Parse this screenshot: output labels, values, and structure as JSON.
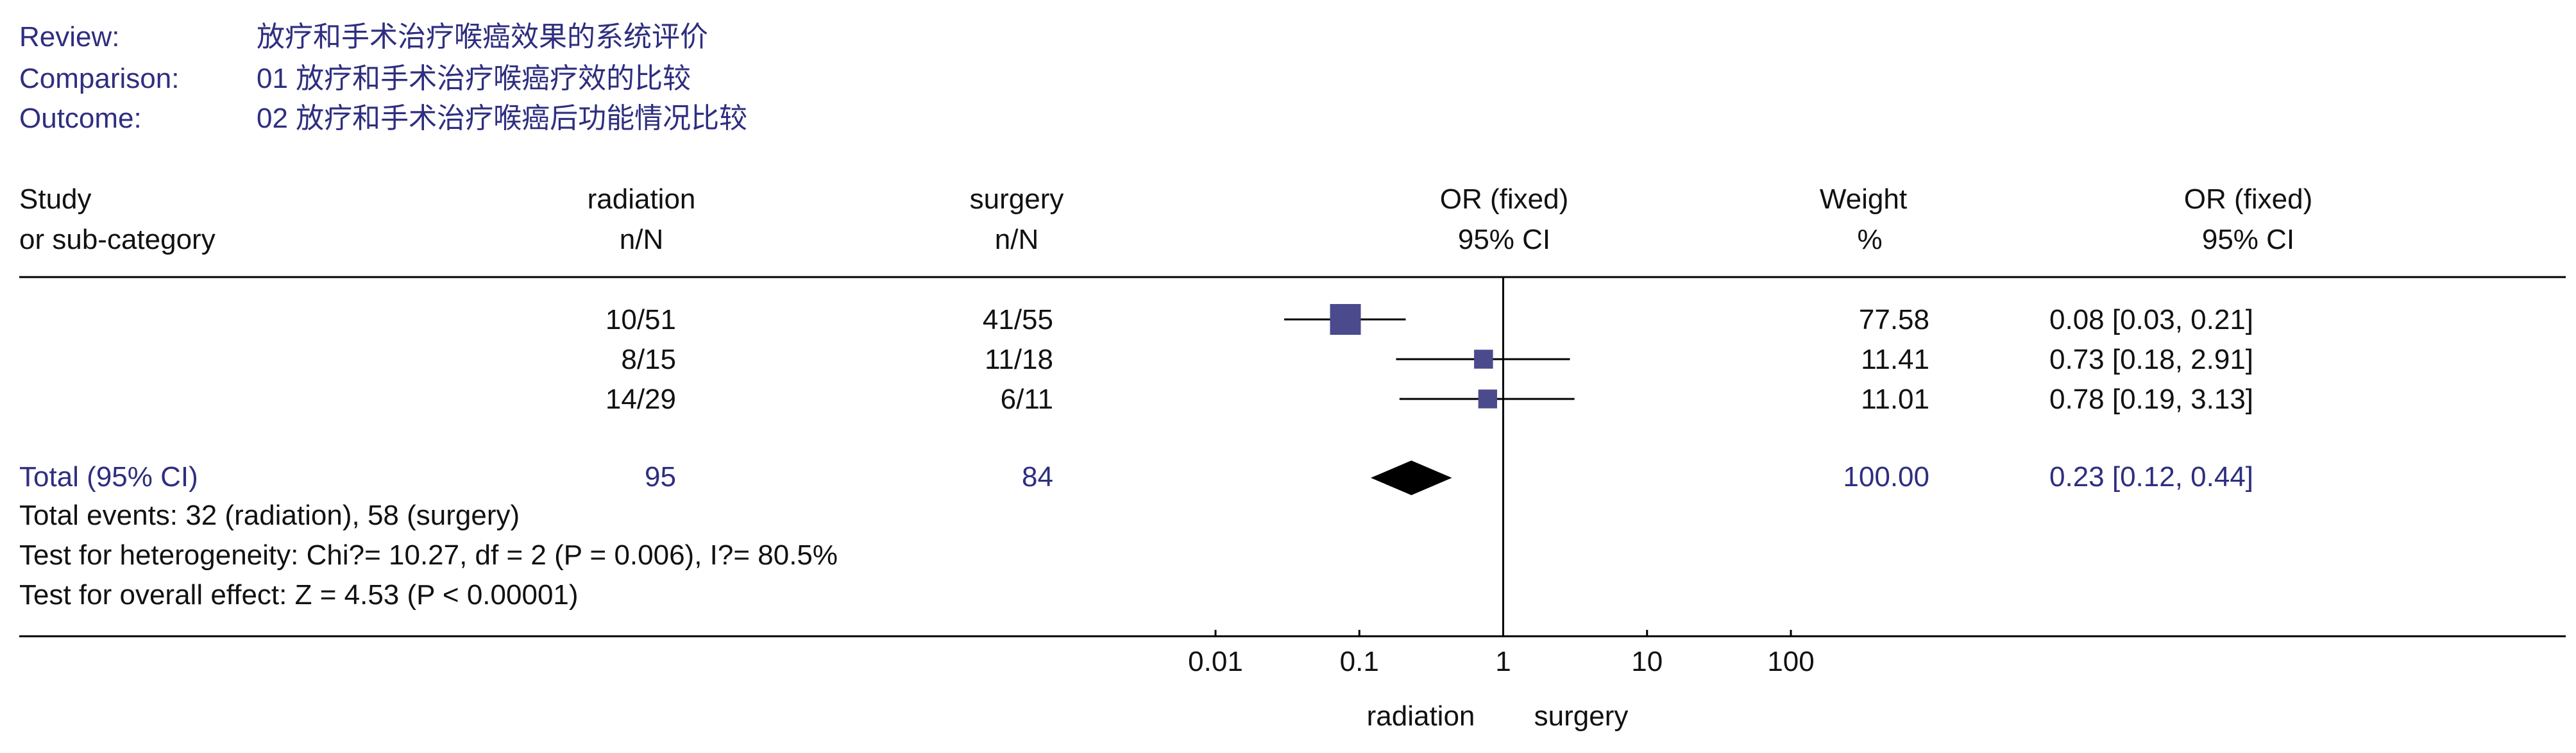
{
  "header": {
    "review_label": "Review:",
    "review_value": "放疗和手术治疗喉癌效果的系统评价",
    "comparison_label": "Comparison:",
    "comparison_value": "01 放疗和手术治疗喉癌疗效的比较",
    "outcome_label": "Outcome:",
    "outcome_value": "02 放疗和手术治疗喉癌后功能情况比较"
  },
  "columns": {
    "study_1": "Study",
    "study_2": "or sub-category",
    "radiation_1": "radiation",
    "radiation_2": "n/N",
    "surgery_1": "surgery",
    "surgery_2": "n/N",
    "or_plot_1": "OR (fixed)",
    "or_plot_2": "95% CI",
    "weight_1": "Weight",
    "weight_2": "%",
    "or_text_1": "OR (fixed)",
    "or_text_2": "95% CI"
  },
  "total": {
    "label": "Total (95% CI)",
    "radiation_n": "95",
    "surgery_n": "84",
    "weight": "100.00",
    "ci_text": "0.23 [0.12, 0.44]"
  },
  "footer": {
    "events": "Total events: 32 (radiation), 58 (surgery)",
    "heterogeneity": "Test for heterogeneity: Chi?= 10.27, df = 2 (P = 0.006), I?= 80.5%",
    "overall": "Test for overall effect: Z = 4.53 (P < 0.00001)"
  },
  "axis_labels": {
    "left": "radiation",
    "right": "surgery"
  },
  "colors": {
    "text": "#111111",
    "navy": "#2e2e80",
    "box": "#4a4a8c",
    "diamond": "#000000",
    "line": "#000000"
  },
  "chart_data": {
    "type": "forest",
    "scale": "log",
    "xlim": [
      0.01,
      100
    ],
    "ticks": [
      0.01,
      0.1,
      1,
      10,
      100
    ],
    "tick_labels": [
      "0.01",
      "0.1",
      "1",
      "10",
      "100"
    ],
    "reference_value": 1,
    "studies": [
      {
        "radiation": "10/51",
        "surgery": "41/55",
        "weight": 77.58,
        "weight_text": "77.58",
        "or": 0.08,
        "ci_low": 0.03,
        "ci_high": 0.21,
        "ci_text": "0.08 [0.03, 0.21]"
      },
      {
        "radiation": "8/15",
        "surgery": "11/18",
        "weight": 11.41,
        "weight_text": "11.41",
        "or": 0.73,
        "ci_low": 0.18,
        "ci_high": 2.91,
        "ci_text": "0.73 [0.18, 2.91]"
      },
      {
        "radiation": "14/29",
        "surgery": "6/11",
        "weight": 11.01,
        "weight_text": "11.01",
        "or": 0.78,
        "ci_low": 0.19,
        "ci_high": 3.13,
        "ci_text": "0.78 [0.19, 3.13]"
      }
    ],
    "pooled": {
      "or": 0.23,
      "ci_low": 0.12,
      "ci_high": 0.44
    }
  }
}
